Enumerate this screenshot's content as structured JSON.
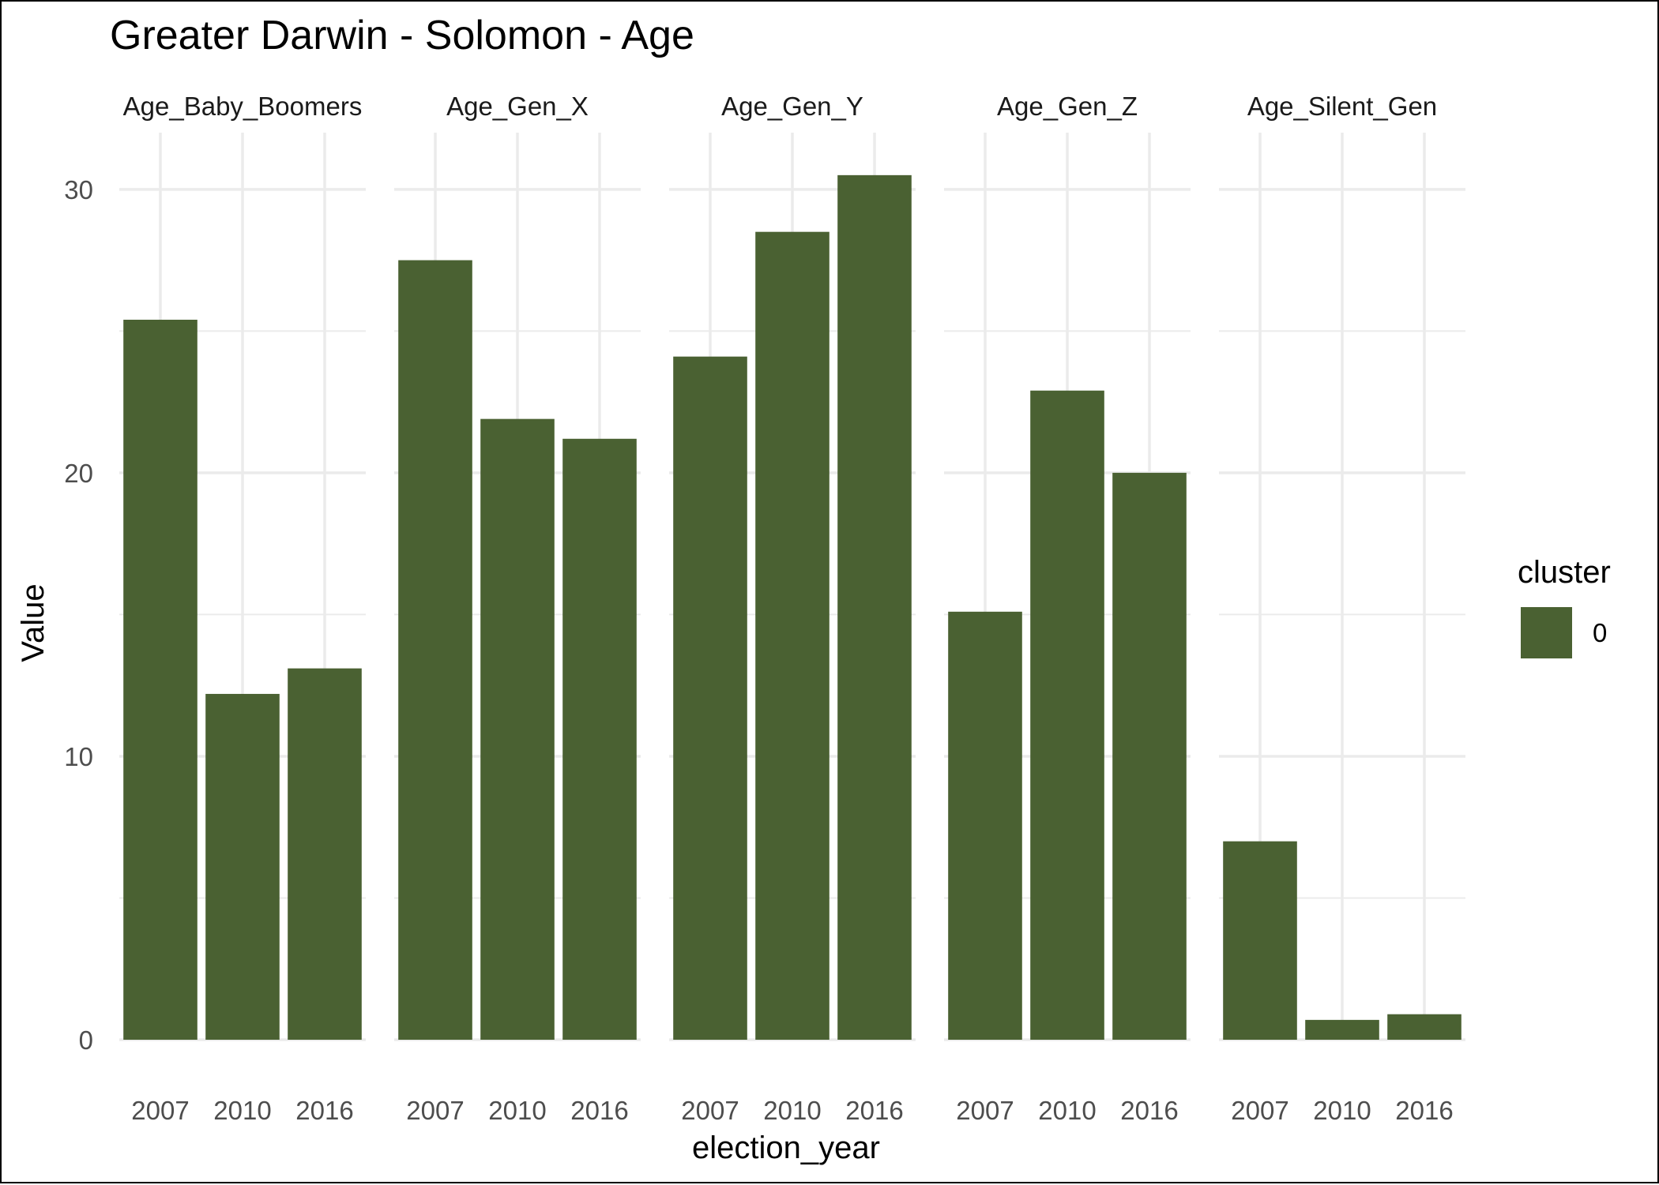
{
  "chart_data": {
    "type": "bar",
    "title": "Greater Darwin - Solomon - Age",
    "xlabel": "election_year",
    "ylabel": "Value",
    "ylim": [
      0,
      32
    ],
    "yticks": [
      0,
      10,
      20,
      30
    ],
    "grid": true,
    "legend": {
      "title": "cluster",
      "position": "right",
      "entries": [
        "0"
      ]
    },
    "colors": {
      "bar": "#4a6132",
      "grid": "#ebebeb"
    },
    "categories": [
      "2007",
      "2010",
      "2016"
    ],
    "facets": [
      {
        "name": "Age_Baby_Boomers",
        "values": [
          25.4,
          12.2,
          13.1
        ]
      },
      {
        "name": "Age_Gen_X",
        "values": [
          27.5,
          21.9,
          21.2
        ]
      },
      {
        "name": "Age_Gen_Y",
        "values": [
          24.1,
          28.5,
          30.5
        ]
      },
      {
        "name": "Age_Gen_Z",
        "values": [
          15.1,
          22.9,
          20.0
        ]
      },
      {
        "name": "Age_Silent_Gen",
        "values": [
          7.0,
          0.7,
          0.9
        ]
      }
    ]
  }
}
